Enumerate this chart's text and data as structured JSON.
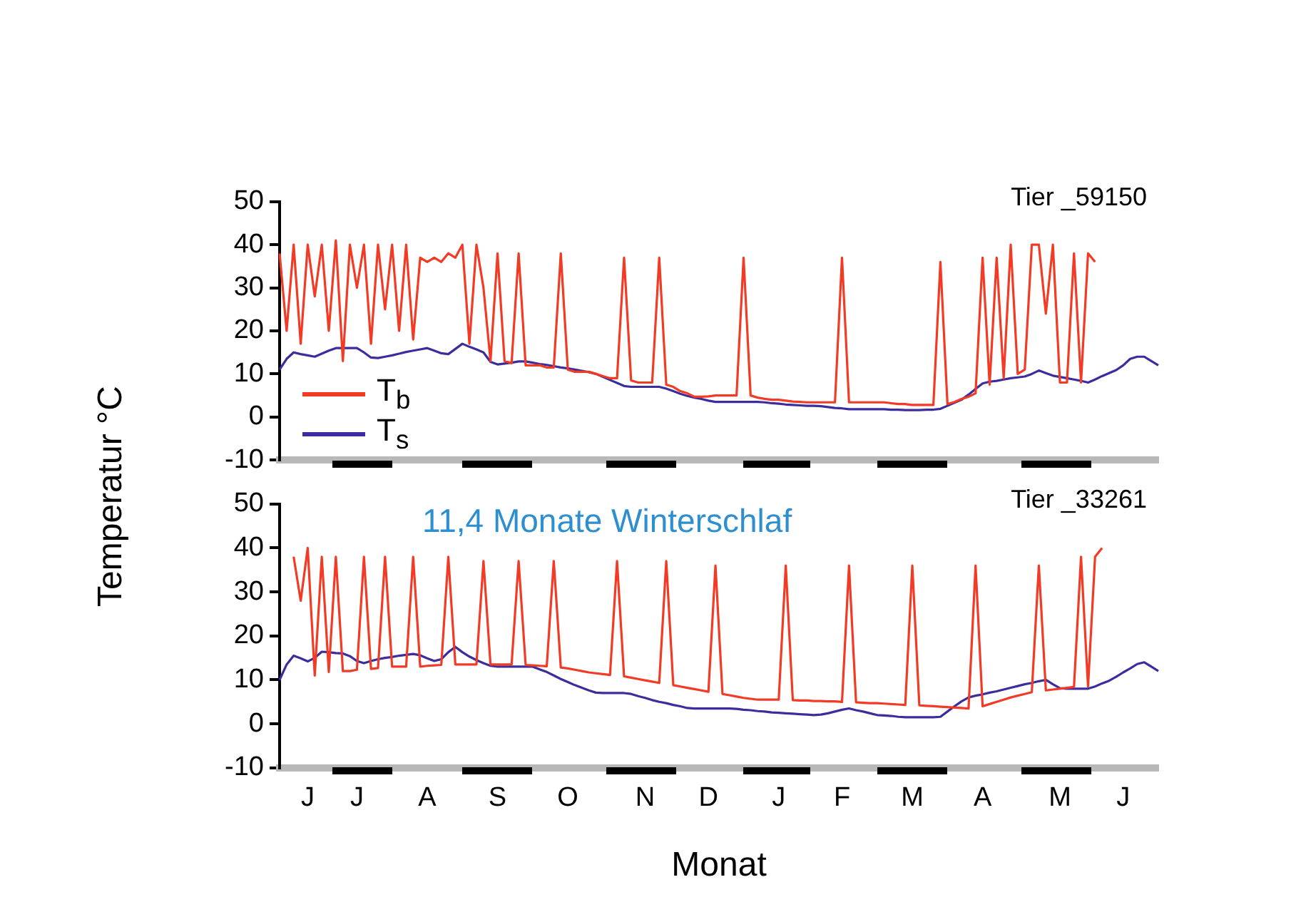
{
  "chart_data": [
    {
      "type": "line",
      "ylabel": "Temperatur °C",
      "annotations": [
        "Tier _59150"
      ],
      "legend": "bottom left",
      "tick_labels": "y",
      "grid": false,
      "marker": "none",
      "line_style": "solid",
      "categories": [
        null,
        null,
        null,
        null,
        null,
        null,
        null,
        null,
        null,
        null,
        null,
        null,
        null,
        null,
        null,
        null,
        null,
        null,
        null,
        null,
        null,
        null,
        null,
        null,
        null,
        null,
        null,
        null,
        null,
        null,
        null,
        null,
        null,
        null,
        null,
        null,
        null,
        null,
        null,
        null,
        null,
        null,
        null,
        null,
        null,
        null,
        null,
        null,
        null,
        null,
        null,
        null,
        null,
        null,
        null,
        null,
        null,
        null,
        null,
        null,
        null,
        null,
        null,
        null,
        null,
        null,
        null,
        null,
        null,
        null,
        null,
        null,
        null,
        null,
        null,
        null,
        null,
        null,
        null,
        null,
        null,
        null,
        null,
        null,
        null,
        null,
        null,
        null,
        null,
        null,
        null,
        null,
        null,
        null,
        null,
        null,
        null,
        null,
        null,
        null,
        null,
        null,
        null,
        null,
        null,
        null,
        null,
        null,
        null,
        null,
        null,
        null,
        null,
        null,
        null,
        null,
        null,
        null,
        null,
        null,
        null,
        null,
        null,
        null,
        null,
        null
      ],
      "ylim": [
        -10,
        50
      ],
      "yticks": [
        -10,
        0,
        10,
        20,
        30,
        40,
        50
      ],
      "series": [
        {
          "name": "T$_{b}$",
          "color": "#f23a25",
          "values": [
            38,
            20,
            40,
            17,
            40,
            28,
            40,
            20,
            41,
            13,
            40,
            30,
            40,
            17,
            40,
            25,
            40,
            20,
            40,
            18,
            37,
            36,
            37,
            36,
            38,
            37,
            40,
            17,
            40,
            30,
            13,
            38,
            13,
            12.5,
            38,
            12,
            12,
            12,
            11.5,
            11.5,
            38,
            11,
            10.5,
            10.5,
            10.5,
            10,
            9.5,
            9,
            9,
            37,
            8.5,
            8,
            8,
            8,
            37,
            7.5,
            7,
            6,
            5.5,
            4.7,
            4.7,
            4.8,
            5,
            5,
            5,
            5,
            37,
            5,
            4.5,
            4.2,
            4,
            4,
            3.8,
            3.6,
            3.5,
            3.4,
            3.4,
            3.4,
            3.4,
            3.4,
            37,
            3.4,
            3.4,
            3.4,
            3.4,
            3.4,
            3.4,
            3.2,
            3,
            3,
            2.8,
            2.8,
            2.8,
            2.8,
            36,
            3,
            3.5,
            4.2,
            4.7,
            5.5,
            37,
            7.5,
            37,
            9,
            40,
            10,
            11,
            40,
            40,
            24,
            40,
            8,
            8,
            38,
            8,
            38,
            36,
            null,
            null,
            null,
            null,
            null,
            null,
            null,
            null,
            null
          ]
        },
        {
          "name": "T$_{s}$",
          "color": "#3c2d9e",
          "values": [
            11,
            13.5,
            15,
            14.6,
            14.3,
            14,
            14.7,
            15.4,
            16,
            16,
            16,
            16,
            15,
            13.8,
            13.7,
            14,
            14.3,
            14.7,
            15.1,
            15.4,
            15.7,
            16,
            15.4,
            14.8,
            14.6,
            15.8,
            17,
            16.3,
            15.7,
            15,
            12.8,
            12.2,
            12.4,
            12.6,
            12.9,
            12.9,
            12.6,
            12.3,
            12.1,
            11.8,
            11.5,
            11.3,
            11,
            10.7,
            10.4,
            10,
            9.3,
            8.6,
            7.9,
            7.2,
            7,
            7,
            7,
            7,
            7,
            6.6,
            6,
            5.4,
            4.9,
            4.5,
            4.2,
            3.8,
            3.5,
            3.5,
            3.5,
            3.5,
            3.5,
            3.5,
            3.5,
            3.4,
            3.2,
            3.1,
            2.9,
            2.8,
            2.7,
            2.6,
            2.6,
            2.5,
            2.3,
            2.1,
            2,
            1.8,
            1.8,
            1.8,
            1.8,
            1.8,
            1.8,
            1.7,
            1.7,
            1.6,
            1.6,
            1.6,
            1.7,
            1.7,
            1.9,
            2.6,
            3.3,
            4,
            5.2,
            6.5,
            7.8,
            8.2,
            8.4,
            8.7,
            9,
            9.2,
            9.4,
            10,
            10.8,
            10.2,
            9.6,
            9.3,
            9,
            8.7,
            8.4,
            8,
            8.7,
            9.5,
            10.2,
            10.9,
            12,
            13.5,
            14,
            14,
            13,
            12
          ]
        }
      ]
    },
    {
      "type": "line",
      "xlabel": "Monat",
      "annotations": [
        "11,4 Monate Winterschlaf",
        "Tier _33261"
      ],
      "grid": false,
      "marker": "none",
      "line_style": "solid",
      "categories": [
        null,
        null,
        null,
        null,
        "J",
        null,
        null,
        null,
        null,
        null,
        null,
        "J",
        null,
        null,
        null,
        null,
        null,
        null,
        null,
        null,
        null,
        "A",
        null,
        null,
        null,
        null,
        null,
        null,
        null,
        null,
        null,
        "S",
        null,
        null,
        null,
        null,
        null,
        null,
        null,
        null,
        null,
        "O",
        null,
        null,
        null,
        null,
        null,
        null,
        null,
        null,
        null,
        null,
        "N",
        null,
        null,
        null,
        null,
        null,
        null,
        null,
        null,
        "D",
        null,
        null,
        null,
        null,
        null,
        null,
        null,
        null,
        null,
        "J",
        null,
        null,
        null,
        null,
        null,
        null,
        null,
        null,
        "F",
        null,
        null,
        null,
        null,
        null,
        null,
        null,
        null,
        null,
        "M",
        null,
        null,
        null,
        null,
        null,
        null,
        null,
        null,
        null,
        "A",
        null,
        null,
        null,
        null,
        null,
        null,
        null,
        null,
        null,
        null,
        "M",
        null,
        null,
        null,
        null,
        null,
        null,
        null,
        null,
        "J",
        null,
        null,
        null,
        null,
        null
      ],
      "ylim": [
        -10,
        50
      ],
      "yticks": [
        -10,
        0,
        10,
        20,
        30,
        40,
        50
      ],
      "series": [
        {
          "color": "#f23a25",
          "values": [
            null,
            null,
            38,
            28,
            40,
            11,
            38,
            11.8,
            38,
            12,
            12,
            12.3,
            38,
            12.5,
            12.7,
            38,
            13,
            13,
            13,
            38,
            13,
            13.2,
            13.3,
            13.4,
            38,
            13.5,
            13.5,
            13.5,
            13.5,
            37,
            13.5,
            13.5,
            13.5,
            13.5,
            37,
            13.4,
            13.3,
            13.2,
            13.1,
            37,
            12.8,
            12.6,
            12.3,
            12,
            11.7,
            11.5,
            11.3,
            11.1,
            37,
            10.8,
            10.5,
            10.2,
            9.9,
            9.6,
            9.3,
            37,
            8.8,
            8.5,
            8.2,
            7.9,
            7.6,
            7.3,
            36,
            6.8,
            6.5,
            6.2,
            5.9,
            5.7,
            5.5,
            5.5,
            5.5,
            5.5,
            36,
            5.4,
            5.3,
            5.3,
            5.2,
            5.2,
            5.1,
            5.1,
            5,
            36,
            4.9,
            4.8,
            4.7,
            4.7,
            4.6,
            4.5,
            4.4,
            4.3,
            36,
            4.2,
            4.1,
            4,
            3.9,
            3.8,
            3.7,
            3.6,
            3.5,
            36,
            4,
            4.5,
            5,
            5.5,
            6,
            6.4,
            6.8,
            7.2,
            36,
            7.6,
            7.8,
            8,
            8.2,
            8.4,
            38,
            8.5,
            38,
            40,
            null,
            null,
            null,
            null,
            null,
            null,
            null,
            null
          ]
        },
        {
          "color": "#3c2d9e",
          "values": [
            10,
            13.5,
            15.5,
            14.9,
            14.2,
            15,
            16.4,
            16.3,
            16.1,
            16,
            15.4,
            14.3,
            13.8,
            14.3,
            14.7,
            15,
            15.2,
            15.5,
            15.7,
            15.9,
            15.6,
            14.9,
            14.3,
            14.7,
            16.3,
            17.5,
            16.3,
            15.3,
            14.5,
            13.8,
            13.2,
            13,
            13,
            13,
            13,
            13,
            13,
            12.4,
            11.8,
            11,
            10.2,
            9.5,
            8.8,
            8.2,
            7.6,
            7.1,
            7,
            7,
            7,
            7,
            6.8,
            6.3,
            5.9,
            5.4,
            5,
            4.7,
            4.3,
            4,
            3.6,
            3.5,
            3.5,
            3.5,
            3.5,
            3.5,
            3.5,
            3.4,
            3.2,
            3.1,
            2.9,
            2.8,
            2.6,
            2.5,
            2.4,
            2.3,
            2.2,
            2.1,
            2,
            2.1,
            2.4,
            2.8,
            3.2,
            3.5,
            3.1,
            2.8,
            2.4,
            2,
            1.9,
            1.8,
            1.6,
            1.5,
            1.5,
            1.5,
            1.5,
            1.5,
            1.6,
            2.8,
            4,
            5.1,
            6,
            6.4,
            6.7,
            7.1,
            7.4,
            7.8,
            8.2,
            8.6,
            9,
            9.3,
            9.7,
            10,
            9,
            8.1,
            8,
            8,
            8,
            8,
            8.5,
            9.2,
            9.8,
            10.7,
            11.7,
            12.6,
            13.6,
            14,
            13,
            12
          ]
        }
      ]
    }
  ]
}
